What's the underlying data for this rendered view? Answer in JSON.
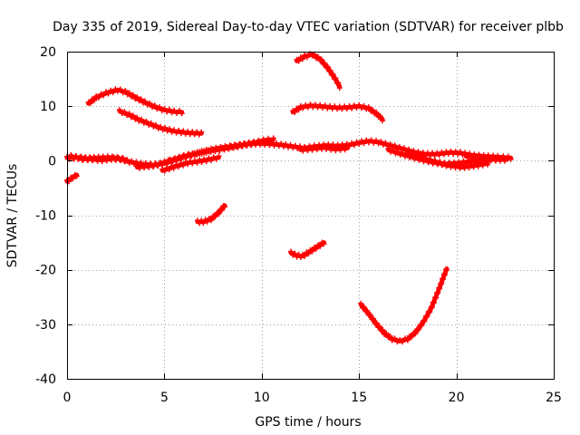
{
  "chart_data": {
    "type": "scatter",
    "title": "Day 335 of 2019, Sidereal Day-to-day VTEC variation (SDTVAR) for receiver plbb",
    "xlabel": "GPS time / hours",
    "ylabel": "SDTVAR / TECUs",
    "xlim": [
      0,
      25
    ],
    "ylim": [
      -40,
      20
    ],
    "xticks": [
      0,
      5,
      10,
      15,
      20,
      25
    ],
    "yticks": [
      -40,
      -30,
      -20,
      -10,
      0,
      10,
      20
    ],
    "xtick_labels": [
      "0",
      "5",
      "10",
      "15",
      "20",
      "25"
    ],
    "ytick_labels": [
      "-40",
      "-30",
      "-20",
      "-10",
      "0",
      "10",
      "20"
    ],
    "grid": true,
    "marker_color": "#ff0000",
    "series": [
      {
        "name": "arc-1",
        "points": [
          [
            1.1,
            10.5
          ],
          [
            1.5,
            11.6
          ],
          [
            2.0,
            12.4
          ],
          [
            2.6,
            13.0
          ],
          [
            3.0,
            12.6
          ],
          [
            3.5,
            11.6
          ],
          [
            4.0,
            10.7
          ],
          [
            4.5,
            9.9
          ],
          [
            5.0,
            9.3
          ],
          [
            5.5,
            9.0
          ],
          [
            5.9,
            8.9
          ]
        ]
      },
      {
        "name": "arc-2",
        "points": [
          [
            2.7,
            9.1
          ],
          [
            3.2,
            8.4
          ],
          [
            3.7,
            7.5
          ],
          [
            4.2,
            6.8
          ],
          [
            4.8,
            6.0
          ],
          [
            5.5,
            5.4
          ],
          [
            6.2,
            5.1
          ],
          [
            6.9,
            5.0
          ]
        ]
      },
      {
        "name": "arc-3",
        "points": [
          [
            0.0,
            -3.8
          ],
          [
            0.2,
            -3.3
          ],
          [
            0.5,
            -2.6
          ]
        ]
      },
      {
        "name": "arc-4",
        "points": [
          [
            0.2,
            0.8
          ],
          [
            0.8,
            0.3
          ],
          [
            1.5,
            0.5
          ],
          [
            2.2,
            0.6
          ],
          [
            2.7,
            0.4
          ],
          [
            3.2,
            -0.2
          ],
          [
            3.8,
            -0.6
          ],
          [
            4.4,
            -0.8
          ],
          [
            5.0,
            -0.5
          ],
          [
            5.6,
            0.2
          ],
          [
            6.2,
            0.9
          ],
          [
            6.8,
            1.5
          ],
          [
            7.4,
            2.0
          ],
          [
            8.0,
            2.4
          ],
          [
            8.6,
            2.7
          ],
          [
            9.2,
            3.0
          ],
          [
            9.8,
            3.2
          ],
          [
            10.4,
            3.1
          ],
          [
            11.0,
            2.9
          ],
          [
            11.6,
            2.6
          ],
          [
            12.2,
            2.3
          ],
          [
            12.7,
            2.6
          ],
          [
            13.3,
            2.8
          ],
          [
            13.9,
            2.7
          ],
          [
            14.5,
            2.9
          ],
          [
            15.0,
            3.3
          ],
          [
            15.5,
            3.6
          ],
          [
            16.0,
            3.4
          ],
          [
            16.6,
            2.8
          ],
          [
            17.2,
            2.2
          ],
          [
            17.8,
            1.6
          ],
          [
            18.4,
            1.2
          ],
          [
            19.0,
            1.2
          ],
          [
            19.6,
            1.5
          ],
          [
            20.2,
            1.4
          ],
          [
            20.8,
            1.0
          ],
          [
            21.4,
            0.8
          ],
          [
            22.0,
            0.7
          ],
          [
            22.8,
            0.5
          ]
        ]
      },
      {
        "name": "arc-5",
        "points": [
          [
            0.0,
            0.5
          ],
          [
            0.6,
            0.6
          ],
          [
            1.2,
            0.3
          ],
          [
            1.8,
            0.1
          ],
          [
            2.4,
            0.4
          ],
          [
            3.0,
            0.2
          ]
        ]
      },
      {
        "name": "arc-6",
        "points": [
          [
            3.6,
            -1.2
          ],
          [
            4.2,
            -1.0
          ],
          [
            4.8,
            -0.6
          ],
          [
            5.2,
            -0.1
          ]
        ]
      },
      {
        "name": "arc-7",
        "points": [
          [
            4.9,
            -1.8
          ],
          [
            5.6,
            -1.0
          ],
          [
            6.2,
            -0.4
          ],
          [
            6.8,
            -0.1
          ],
          [
            7.4,
            0.3
          ],
          [
            7.8,
            0.6
          ]
        ]
      },
      {
        "name": "arc-8",
        "points": [
          [
            5.3,
            0.0
          ],
          [
            6.0,
            0.8
          ],
          [
            6.8,
            1.4
          ],
          [
            7.5,
            1.9
          ],
          [
            8.2,
            2.3
          ],
          [
            8.9,
            2.8
          ],
          [
            9.6,
            3.3
          ],
          [
            10.2,
            3.8
          ],
          [
            10.6,
            3.9
          ]
        ]
      },
      {
        "name": "arc-9",
        "points": [
          [
            12.0,
            2.0
          ],
          [
            12.6,
            2.2
          ],
          [
            13.2,
            2.4
          ],
          [
            13.8,
            2.1
          ],
          [
            14.4,
            2.3
          ]
        ]
      },
      {
        "name": "arc-10",
        "points": [
          [
            16.5,
            2.0
          ],
          [
            17.0,
            1.4
          ],
          [
            17.6,
            0.8
          ],
          [
            18.2,
            0.2
          ],
          [
            18.8,
            -0.3
          ],
          [
            19.4,
            -0.6
          ],
          [
            20.0,
            -0.5
          ],
          [
            20.6,
            -0.2
          ],
          [
            21.2,
            0.0
          ],
          [
            21.8,
            0.2
          ]
        ]
      },
      {
        "name": "arc-11",
        "points": [
          [
            17.5,
            1.2
          ],
          [
            18.2,
            0.5
          ],
          [
            18.9,
            -0.2
          ],
          [
            19.6,
            -0.9
          ],
          [
            20.3,
            -1.2
          ],
          [
            21.0,
            -0.9
          ],
          [
            21.6,
            -0.5
          ]
        ]
      },
      {
        "name": "arc-12",
        "points": [
          [
            20.5,
            0.8
          ],
          [
            21.2,
            0.5
          ],
          [
            21.9,
            0.2
          ],
          [
            22.6,
            0.2
          ]
        ]
      },
      {
        "name": "arc-13",
        "points": [
          [
            11.6,
            8.9
          ],
          [
            12.0,
            9.8
          ],
          [
            12.5,
            10.1
          ],
          [
            13.0,
            10.0
          ],
          [
            13.5,
            9.8
          ],
          [
            14.0,
            9.7
          ],
          [
            14.5,
            9.8
          ],
          [
            15.0,
            10.0
          ],
          [
            15.5,
            9.6
          ],
          [
            15.9,
            8.6
          ],
          [
            16.2,
            7.6
          ]
        ]
      },
      {
        "name": "arc-14",
        "points": [
          [
            11.8,
            18.3
          ],
          [
            12.2,
            19.1
          ],
          [
            12.6,
            19.5
          ],
          [
            13.0,
            18.6
          ],
          [
            13.4,
            17.0
          ],
          [
            13.8,
            14.9
          ],
          [
            14.0,
            13.6
          ]
        ]
      },
      {
        "name": "arc-15",
        "points": [
          [
            6.7,
            -11.2
          ],
          [
            7.0,
            -11.2
          ],
          [
            7.4,
            -10.7
          ],
          [
            7.8,
            -9.5
          ],
          [
            8.1,
            -8.2
          ]
        ]
      },
      {
        "name": "arc-16",
        "points": [
          [
            11.5,
            -16.9
          ],
          [
            11.8,
            -17.4
          ],
          [
            12.1,
            -17.5
          ],
          [
            12.5,
            -16.6
          ],
          [
            12.9,
            -15.7
          ],
          [
            13.2,
            -15.0
          ]
        ]
      },
      {
        "name": "arc-17",
        "points": [
          [
            15.1,
            -26.4
          ],
          [
            15.5,
            -28.1
          ],
          [
            15.9,
            -30.0
          ],
          [
            16.3,
            -31.6
          ],
          [
            16.7,
            -32.7
          ],
          [
            17.1,
            -33.1
          ],
          [
            17.5,
            -32.7
          ],
          [
            17.9,
            -31.5
          ],
          [
            18.3,
            -29.6
          ],
          [
            18.7,
            -27.1
          ],
          [
            19.1,
            -23.6
          ],
          [
            19.5,
            -19.8
          ]
        ]
      }
    ]
  }
}
